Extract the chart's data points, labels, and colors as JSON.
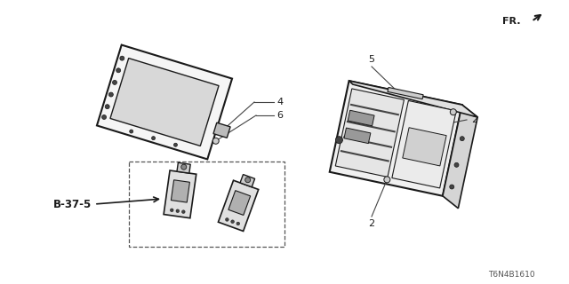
{
  "bg_color": "#ffffff",
  "line_color": "#1a1a1a",
  "dark_gray": "#444444",
  "mid_gray": "#888888",
  "light_gray": "#cccccc",
  "fill_gray": "#e8e8e8",
  "fr_text": "FR.",
  "part_number": "T6N4B1610",
  "label_4": "4",
  "label_5": "5",
  "label_6": "6",
  "label_2": "2",
  "label_b37": "B-37-5",
  "figsize": [
    6.4,
    3.2
  ],
  "dpi": 100
}
